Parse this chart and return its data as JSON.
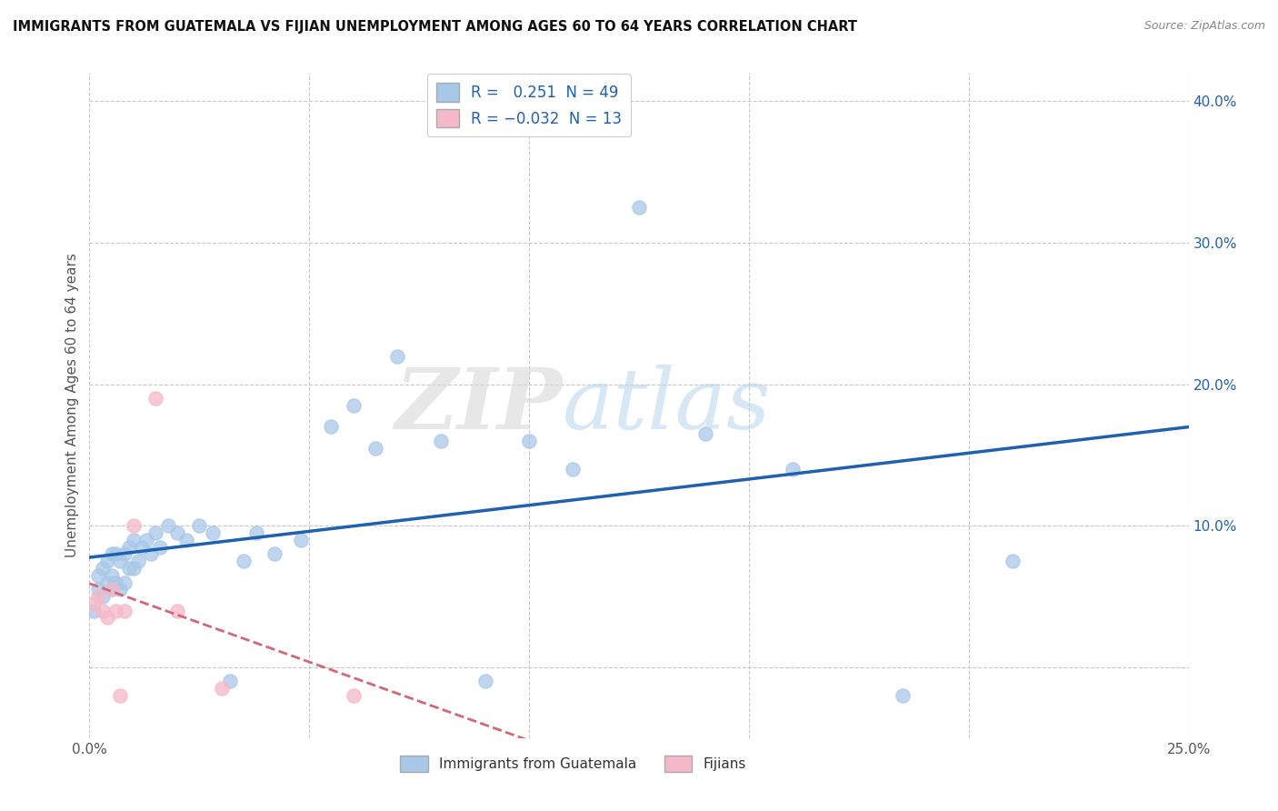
{
  "title": "IMMIGRANTS FROM GUATEMALA VS FIJIAN UNEMPLOYMENT AMONG AGES 60 TO 64 YEARS CORRELATION CHART",
  "source": "Source: ZipAtlas.com",
  "ylabel": "Unemployment Among Ages 60 to 64 years",
  "xlim": [
    0.0,
    0.25
  ],
  "ylim": [
    -0.05,
    0.42
  ],
  "blue_R": 0.251,
  "blue_N": 49,
  "pink_R": -0.032,
  "pink_N": 13,
  "blue_color": "#a8c8e8",
  "pink_color": "#f4b8c8",
  "blue_line_color": "#2060b0",
  "pink_line_color": "#d06878",
  "background_color": "#ffffff",
  "grid_color": "#c8c8c8",
  "blue_x": [
    0.001,
    0.002,
    0.002,
    0.003,
    0.003,
    0.004,
    0.004,
    0.005,
    0.005,
    0.005,
    0.006,
    0.006,
    0.007,
    0.007,
    0.008,
    0.008,
    0.009,
    0.009,
    0.01,
    0.01,
    0.011,
    0.012,
    0.013,
    0.014,
    0.015,
    0.016,
    0.018,
    0.02,
    0.022,
    0.025,
    0.028,
    0.032,
    0.035,
    0.038,
    0.042,
    0.048,
    0.055,
    0.06,
    0.065,
    0.07,
    0.08,
    0.09,
    0.1,
    0.11,
    0.125,
    0.14,
    0.16,
    0.185,
    0.21
  ],
  "blue_y": [
    0.04,
    0.055,
    0.065,
    0.05,
    0.07,
    0.06,
    0.075,
    0.055,
    0.065,
    0.08,
    0.06,
    0.08,
    0.055,
    0.075,
    0.06,
    0.08,
    0.07,
    0.085,
    0.07,
    0.09,
    0.075,
    0.085,
    0.09,
    0.08,
    0.095,
    0.085,
    0.1,
    0.095,
    0.09,
    0.1,
    0.095,
    -0.01,
    0.075,
    0.095,
    0.08,
    0.09,
    0.17,
    0.185,
    0.155,
    0.22,
    0.16,
    -0.01,
    0.16,
    0.14,
    0.325,
    0.165,
    0.14,
    -0.02,
    0.075
  ],
  "pink_x": [
    0.001,
    0.002,
    0.003,
    0.004,
    0.005,
    0.006,
    0.007,
    0.008,
    0.01,
    0.015,
    0.02,
    0.03,
    0.06
  ],
  "pink_y": [
    0.045,
    0.05,
    0.04,
    0.035,
    0.055,
    0.04,
    -0.02,
    0.04,
    0.1,
    0.19,
    0.04,
    -0.015,
    -0.02
  ]
}
